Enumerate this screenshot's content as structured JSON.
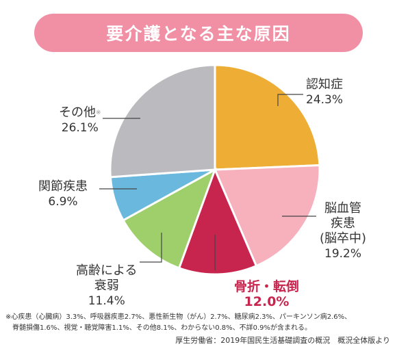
{
  "chart_data": {
    "type": "pie",
    "title": "要介護となる主な原因",
    "slices": [
      {
        "label": "認知症",
        "value": 24.3,
        "display": "24.3%",
        "color": "#eeae35",
        "highlight": false
      },
      {
        "label": "脳血管\n疾患\n(脳卒中)",
        "value": 19.2,
        "display": "19.2%",
        "color": "#f6b1bd",
        "highlight": false
      },
      {
        "label": "骨折・転倒",
        "value": 12.0,
        "display": "12.0%",
        "color": "#c8254e",
        "highlight": true
      },
      {
        "label": "高齢による\n衰弱",
        "value": 11.4,
        "display": "11.4%",
        "color": "#9fcf6a",
        "highlight": false
      },
      {
        "label": "関節疾患",
        "value": 6.9,
        "display": "6.9%",
        "color": "#6ab8dd",
        "highlight": false
      },
      {
        "label": "その他",
        "value": 26.1,
        "display": "26.1%",
        "color": "#bbbbbf",
        "highlight": false,
        "mark": "※"
      }
    ]
  },
  "notes": {
    "line1": "※心疾患（心臓病）3.3%、呼吸器疾患2.7%、悪性新生物（がん）2.7%、糖尿病2.3%、パーキンソン病2.6%、",
    "line2": "脊髄損傷1.6%、視覚・聴覚障害1.1%、その他8.1%、わからない0.8%、不詳0.9%が含まれる。"
  },
  "source": "厚生労働省：2019年国民生活基礎調査の概況　概況全体版より"
}
